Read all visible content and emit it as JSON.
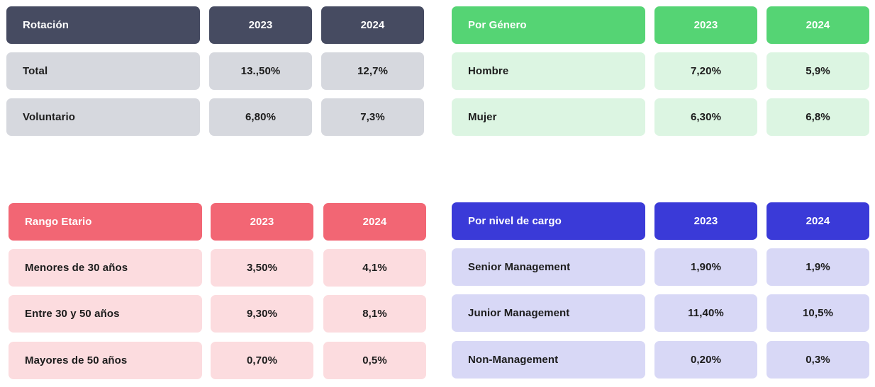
{
  "rotacion": {
    "header": {
      "label": "Rotación",
      "y2023": "2023",
      "y2024": "2024"
    },
    "rows": [
      {
        "label": "Total",
        "v2023": "13.,50%",
        "v2024": "12,7%"
      },
      {
        "label": "Voluntario",
        "v2023": "6,80%",
        "v2024": "7,3%"
      }
    ]
  },
  "genero": {
    "header": {
      "label": "Por Género",
      "y2023": "2023",
      "y2024": "2024"
    },
    "rows": [
      {
        "label": "Hombre",
        "v2023": "7,20%",
        "v2024": "5,9%"
      },
      {
        "label": "Mujer",
        "v2023": "6,30%",
        "v2024": "6,8%"
      }
    ]
  },
  "edad": {
    "header": {
      "label": "Rango Etario",
      "y2023": "2023",
      "y2024": "2024"
    },
    "rows": [
      {
        "label": "Menores de 30 años",
        "v2023": "3,50%",
        "v2024": "4,1%"
      },
      {
        "label": "Entre 30 y 50 años",
        "v2023": "9,30%",
        "v2024": "8,1%"
      },
      {
        "label": "Mayores de 50 años",
        "v2023": "0,70%",
        "v2024": "0,5%"
      }
    ]
  },
  "cargo": {
    "header": {
      "label": "Por nivel de cargo",
      "y2023": "2023",
      "y2024": "2024"
    },
    "rows": [
      {
        "label": "Senior Management",
        "v2023": "1,90%",
        "v2024": "1,9%"
      },
      {
        "label": "Junior Management",
        "v2023": "11,40%",
        "v2024": "10,5%"
      },
      {
        "label": "Non-Management",
        "v2023": "0,20%",
        "v2024": "0,3%"
      }
    ]
  },
  "colors": {
    "rotacion_header": "#464b61",
    "rotacion_body": "#d6d8de",
    "genero_header": "#55d474",
    "genero_body": "#dcf5e2",
    "edad_header": "#f26674",
    "edad_body": "#fcdcdf",
    "cargo_header": "#3a3ad8",
    "cargo_body": "#d8d8f6"
  }
}
